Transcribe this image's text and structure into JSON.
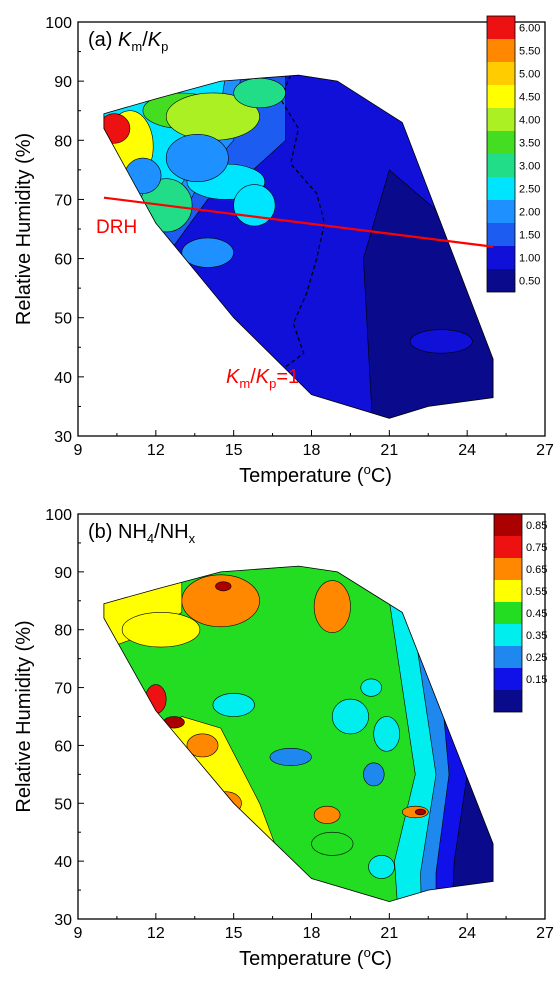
{
  "chart_data": [
    {
      "type": "heatmap",
      "panel_label": "(a)",
      "title_parts": {
        "v1": "K",
        "s1": "m",
        "slash": "/",
        "v2": "K",
        "s2": "p"
      },
      "xlabel_parts": {
        "pre": "Temperature (",
        "sup": "o",
        "post": "C)"
      },
      "ylabel": "Relative Humidity (%)",
      "xlim": [
        9,
        27
      ],
      "ylim": [
        30,
        100
      ],
      "x_ticks": [
        "9",
        "12",
        "15",
        "18",
        "21",
        "24",
        "27"
      ],
      "y_ticks": [
        "30",
        "40",
        "50",
        "60",
        "70",
        "80",
        "90",
        "100"
      ],
      "legend_levels": [
        "0.50",
        "1.00",
        "1.50",
        "2.00",
        "2.50",
        "3.00",
        "3.50",
        "4.00",
        "4.50",
        "5.00",
        "5.50",
        "6.00"
      ],
      "legend_colors": [
        "#0a0a8c",
        "#1010d8",
        "#1c5cf0",
        "#1e90ff",
        "#00e5ff",
        "#22dd88",
        "#44dd22",
        "#aaf022",
        "#ffff00",
        "#ffcc00",
        "#ff8800",
        "#ee1111"
      ],
      "domain_polygon": [
        [
          10,
          84.5
        ],
        [
          12,
          87
        ],
        [
          14.5,
          90
        ],
        [
          17.5,
          91
        ],
        [
          19,
          90
        ],
        [
          21.5,
          83
        ],
        [
          25,
          43
        ],
        [
          25,
          36.5
        ],
        [
          22.5,
          35
        ],
        [
          21,
          33
        ],
        [
          18,
          37
        ],
        [
          15,
          50
        ],
        [
          12,
          66
        ],
        [
          10,
          82
        ]
      ],
      "drh_line": {
        "label": "DRH",
        "x": [
          10,
          25
        ],
        "y": [
          70.3,
          62
        ]
      },
      "annotation_parts": {
        "v1": "K",
        "s1": "m",
        "slash": "/",
        "v2": "K",
        "s2": "p",
        "eq": "=1"
      },
      "blobs": [
        {
          "x": 11,
          "y": 79,
          "rx": 0.9,
          "ry": 6,
          "v": 4.5
        },
        {
          "x": 10.4,
          "y": 82,
          "rx": 0.6,
          "ry": 2.5,
          "v": 5.8
        },
        {
          "x": 13,
          "y": 85,
          "rx": 1.5,
          "ry": 3,
          "v": 3.3
        },
        {
          "x": 14.2,
          "y": 84,
          "rx": 1.8,
          "ry": 4,
          "v": 3.7
        },
        {
          "x": 16,
          "y": 88,
          "rx": 1.0,
          "ry": 2.5,
          "v": 2.8
        },
        {
          "x": 12.4,
          "y": 69,
          "rx": 1.0,
          "ry": 4.5,
          "v": 3.0
        },
        {
          "x": 14.7,
          "y": 73,
          "rx": 1.5,
          "ry": 3,
          "v": 2.3
        },
        {
          "x": 15.8,
          "y": 69,
          "rx": 0.8,
          "ry": 3.5,
          "v": 2.4
        },
        {
          "x": 14.0,
          "y": 61,
          "rx": 1.0,
          "ry": 2.5,
          "v": 1.9
        },
        {
          "x": 13.6,
          "y": 77,
          "rx": 1.2,
          "ry": 4,
          "v": 1.8
        },
        {
          "x": 11.5,
          "y": 74,
          "rx": 0.7,
          "ry": 3,
          "v": 2.0
        },
        {
          "x": 23,
          "y": 46,
          "rx": 1.2,
          "ry": 2,
          "v": 0.6
        }
      ]
    },
    {
      "type": "heatmap",
      "panel_label": "(b)",
      "title_parts": {
        "v1": "NH",
        "s1": "4",
        "slash": "/",
        "v2": "NH",
        "s2": "x"
      },
      "xlabel_parts": {
        "pre": "Temperature (",
        "sup": "o",
        "post": "C)"
      },
      "ylabel": "Relative Humidity (%)",
      "xlim": [
        9,
        27
      ],
      "ylim": [
        30,
        100
      ],
      "x_ticks": [
        "9",
        "12",
        "15",
        "18",
        "21",
        "24",
        "27"
      ],
      "y_ticks": [
        "30",
        "40",
        "50",
        "60",
        "70",
        "80",
        "90",
        "100"
      ],
      "legend_levels": [
        "0.15",
        "0.25",
        "0.35",
        "0.45",
        "0.55",
        "0.65",
        "0.75",
        "0.85"
      ],
      "legend_colors": [
        "#0a0a8c",
        "#1010e8",
        "#1e88ee",
        "#00eeee",
        "#22dd22",
        "#ffff00",
        "#ff8800",
        "#ee1111",
        "#aa0000"
      ],
      "domain_polygon": [
        [
          10,
          84.5
        ],
        [
          12,
          87
        ],
        [
          14.5,
          90
        ],
        [
          17.5,
          91
        ],
        [
          19,
          90
        ],
        [
          21.5,
          83
        ],
        [
          25,
          43
        ],
        [
          25,
          36.5
        ],
        [
          22.5,
          35
        ],
        [
          21,
          33
        ],
        [
          18,
          37
        ],
        [
          15,
          50
        ],
        [
          12,
          66
        ],
        [
          10,
          82
        ]
      ],
      "blobs": [
        {
          "x": 14.5,
          "y": 85,
          "rx": 1.5,
          "ry": 4.5,
          "v": 0.7
        },
        {
          "x": 18.8,
          "y": 84,
          "rx": 0.7,
          "ry": 4.5,
          "v": 0.7
        },
        {
          "x": 14.6,
          "y": 87.5,
          "rx": 0.3,
          "ry": 0.8,
          "v": 0.9
        },
        {
          "x": 12,
          "y": 68,
          "rx": 0.4,
          "ry": 2.5,
          "v": 0.8
        },
        {
          "x": 12.7,
          "y": 64,
          "rx": 0.4,
          "ry": 1.0,
          "v": 0.9
        },
        {
          "x": 13.8,
          "y": 60,
          "rx": 0.6,
          "ry": 2,
          "v": 0.7
        },
        {
          "x": 14.7,
          "y": 50,
          "rx": 0.6,
          "ry": 2,
          "v": 0.7
        },
        {
          "x": 18.6,
          "y": 48,
          "rx": 0.5,
          "ry": 1.5,
          "v": 0.7
        },
        {
          "x": 22.0,
          "y": 48.5,
          "rx": 0.5,
          "ry": 1.0,
          "v": 0.7
        },
        {
          "x": 22.2,
          "y": 48.5,
          "rx": 0.2,
          "ry": 0.5,
          "v": 0.9
        },
        {
          "x": 15,
          "y": 67,
          "rx": 0.8,
          "ry": 2,
          "v": 0.4
        },
        {
          "x": 19.5,
          "y": 65,
          "rx": 0.7,
          "ry": 3,
          "v": 0.4
        },
        {
          "x": 20.3,
          "y": 70,
          "rx": 0.4,
          "ry": 1.5,
          "v": 0.4
        },
        {
          "x": 20.9,
          "y": 62,
          "rx": 0.5,
          "ry": 3,
          "v": 0.4
        },
        {
          "x": 17.2,
          "y": 58,
          "rx": 0.8,
          "ry": 1.5,
          "v": 0.35
        },
        {
          "x": 20.4,
          "y": 55,
          "rx": 0.4,
          "ry": 2,
          "v": 0.3
        },
        {
          "x": 20.7,
          "y": 39,
          "rx": 0.5,
          "ry": 2,
          "v": 0.4
        },
        {
          "x": 18.8,
          "y": 43,
          "rx": 0.8,
          "ry": 2,
          "v": 0.55
        },
        {
          "x": 12.2,
          "y": 80,
          "rx": 1.5,
          "ry": 3,
          "v": 0.62
        }
      ]
    }
  ]
}
